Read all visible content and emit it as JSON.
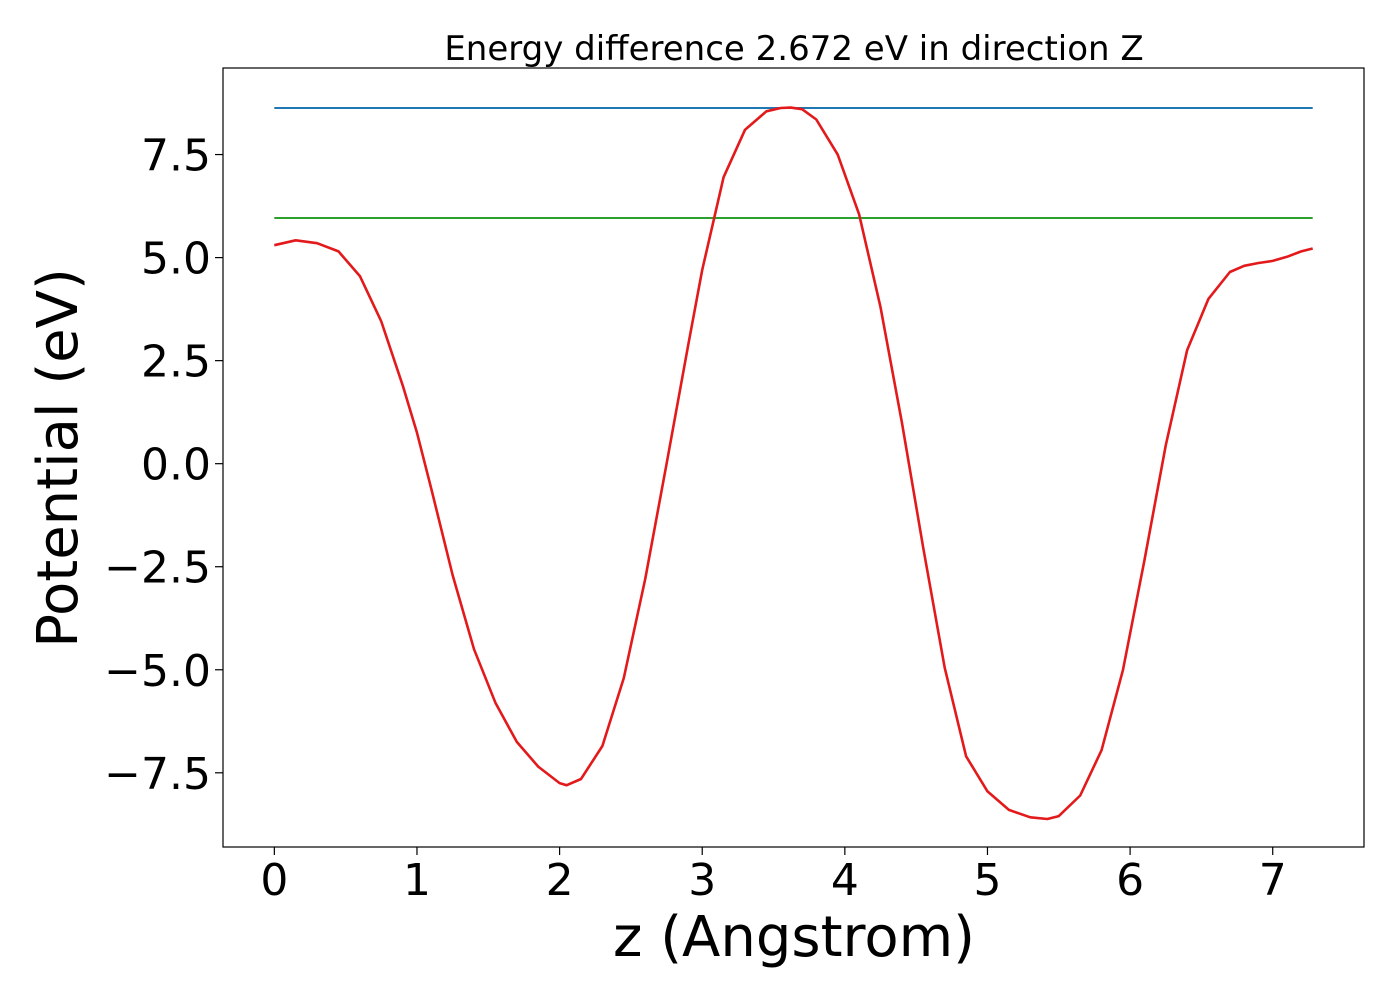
{
  "chart_data": {
    "type": "line",
    "title": "Energy difference 2.672 eV in direction Z",
    "xlabel": "z (Angstrom)",
    "ylabel": "Potential (eV)",
    "xlim": [
      -0.36,
      7.64
    ],
    "ylim": [
      -9.3,
      9.6
    ],
    "xticks": [
      0,
      1,
      2,
      3,
      4,
      5,
      6,
      7
    ],
    "xtick_labels": [
      "0",
      "1",
      "2",
      "3",
      "4",
      "5",
      "6",
      "7"
    ],
    "yticks": [
      -7.5,
      -5.0,
      -2.5,
      0.0,
      2.5,
      5.0,
      7.5
    ],
    "ytick_labels": [
      "−7.5",
      "−5.0",
      "−2.5",
      "0.0",
      "2.5",
      "5.0",
      "7.5"
    ],
    "grid": false,
    "series": [
      {
        "color": "#1f77b4",
        "x": [
          0.0,
          7.28
        ],
        "y": [
          8.63,
          8.63
        ]
      },
      {
        "color": "#2ca02c",
        "x": [
          0.0,
          7.28
        ],
        "y": [
          5.96,
          5.96
        ]
      },
      {
        "color": "#e31a1c",
        "x": [
          0.0,
          0.15,
          0.3,
          0.45,
          0.6,
          0.75,
          0.9,
          1.0,
          1.1,
          1.25,
          1.4,
          1.55,
          1.7,
          1.85,
          2.0,
          2.05,
          2.15,
          2.3,
          2.45,
          2.6,
          2.75,
          2.9,
          3.0,
          3.15,
          3.3,
          3.45,
          3.55,
          3.62,
          3.7,
          3.8,
          3.95,
          4.1,
          4.25,
          4.4,
          4.55,
          4.7,
          4.85,
          5.0,
          5.15,
          5.3,
          5.42,
          5.5,
          5.65,
          5.8,
          5.95,
          6.1,
          6.25,
          6.4,
          6.55,
          6.7,
          6.8,
          6.9,
          7.0,
          7.1,
          7.2,
          7.28
        ],
        "y": [
          5.3,
          5.42,
          5.35,
          5.15,
          4.55,
          3.45,
          1.9,
          0.75,
          -0.6,
          -2.7,
          -4.5,
          -5.8,
          -6.75,
          -7.35,
          -7.75,
          -7.8,
          -7.65,
          -6.85,
          -5.2,
          -2.8,
          0.0,
          2.85,
          4.7,
          6.95,
          8.1,
          8.55,
          8.63,
          8.64,
          8.6,
          8.35,
          7.5,
          6.05,
          3.8,
          1.0,
          -2.05,
          -4.95,
          -7.1,
          -7.95,
          -8.4,
          -8.58,
          -8.62,
          -8.55,
          -8.05,
          -6.95,
          -5.0,
          -2.35,
          0.45,
          2.75,
          4.0,
          4.65,
          4.8,
          4.87,
          4.92,
          5.02,
          5.15,
          5.22
        ]
      }
    ]
  }
}
